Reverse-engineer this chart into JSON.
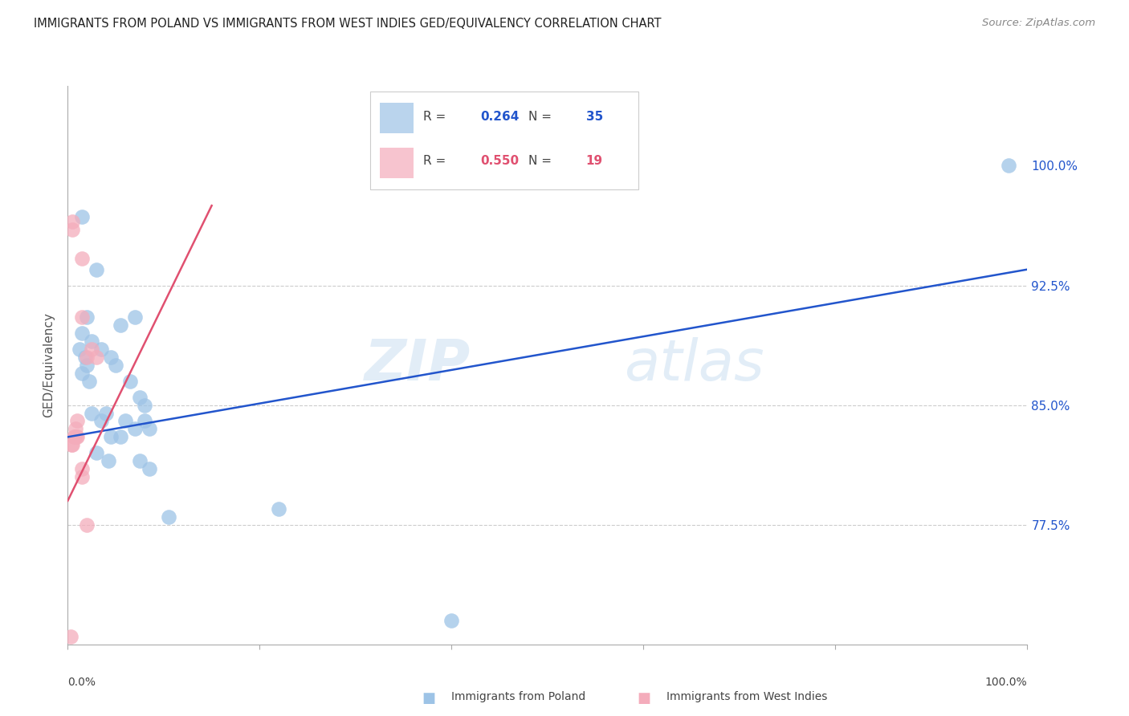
{
  "title": "IMMIGRANTS FROM POLAND VS IMMIGRANTS FROM WEST INDIES GED/EQUIVALENCY CORRELATION CHART",
  "source": "Source: ZipAtlas.com",
  "ylabel": "GED/Equivalency",
  "xlim": [
    0.0,
    100.0
  ],
  "ylim": [
    70.0,
    105.0
  ],
  "yticks": [
    77.5,
    85.0,
    92.5
  ],
  "yright_ticks": [
    77.5,
    85.0,
    92.5,
    100.0
  ],
  "yright_labels": [
    "77.5%",
    "85.0%",
    "92.5%",
    "100.0%"
  ],
  "blue_R": 0.264,
  "blue_N": 35,
  "pink_R": 0.55,
  "pink_N": 19,
  "blue_color": "#9dc3e6",
  "pink_color": "#f4acbb",
  "blue_line_color": "#2255cc",
  "pink_line_color": "#e05070",
  "watermark_zip": "ZIP",
  "watermark_atlas": "atlas",
  "legend_label_blue": "Immigrants from Poland",
  "legend_label_pink": "Immigrants from West Indies",
  "blue_points": [
    [
      1.5,
      96.8
    ],
    [
      3.0,
      93.5
    ],
    [
      5.5,
      90.0
    ],
    [
      2.0,
      90.5
    ],
    [
      1.5,
      89.5
    ],
    [
      2.5,
      89.0
    ],
    [
      1.2,
      88.5
    ],
    [
      1.8,
      88.0
    ],
    [
      3.5,
      88.5
    ],
    [
      2.0,
      87.5
    ],
    [
      1.5,
      87.0
    ],
    [
      2.2,
      86.5
    ],
    [
      4.5,
      88.0
    ],
    [
      5.0,
      87.5
    ],
    [
      7.0,
      90.5
    ],
    [
      6.5,
      86.5
    ],
    [
      7.5,
      85.5
    ],
    [
      8.0,
      85.0
    ],
    [
      2.5,
      84.5
    ],
    [
      3.5,
      84.0
    ],
    [
      6.0,
      84.0
    ],
    [
      4.0,
      84.5
    ],
    [
      7.0,
      83.5
    ],
    [
      8.5,
      83.5
    ],
    [
      8.0,
      84.0
    ],
    [
      4.5,
      83.0
    ],
    [
      5.5,
      83.0
    ],
    [
      3.0,
      82.0
    ],
    [
      4.2,
      81.5
    ],
    [
      7.5,
      81.5
    ],
    [
      8.5,
      81.0
    ],
    [
      10.5,
      78.0
    ],
    [
      22.0,
      78.5
    ],
    [
      40.0,
      71.5
    ],
    [
      98.0,
      100.0
    ]
  ],
  "pink_points": [
    [
      0.5,
      96.5
    ],
    [
      0.5,
      96.0
    ],
    [
      1.5,
      94.2
    ],
    [
      1.5,
      90.5
    ],
    [
      2.5,
      88.5
    ],
    [
      2.0,
      88.0
    ],
    [
      3.0,
      88.0
    ],
    [
      1.0,
      84.0
    ],
    [
      0.8,
      83.5
    ],
    [
      0.7,
      83.0
    ],
    [
      0.9,
      83.0
    ],
    [
      1.0,
      83.0
    ],
    [
      0.6,
      83.0
    ],
    [
      0.5,
      82.5
    ],
    [
      0.4,
      82.5
    ],
    [
      1.5,
      81.0
    ],
    [
      1.5,
      80.5
    ],
    [
      2.0,
      77.5
    ],
    [
      0.3,
      70.5
    ]
  ],
  "blue_trendline_x": [
    0,
    100
  ],
  "blue_trendline_y": [
    83.0,
    93.5
  ],
  "pink_trendline_x": [
    0,
    15
  ],
  "pink_trendline_y": [
    79.0,
    97.5
  ]
}
